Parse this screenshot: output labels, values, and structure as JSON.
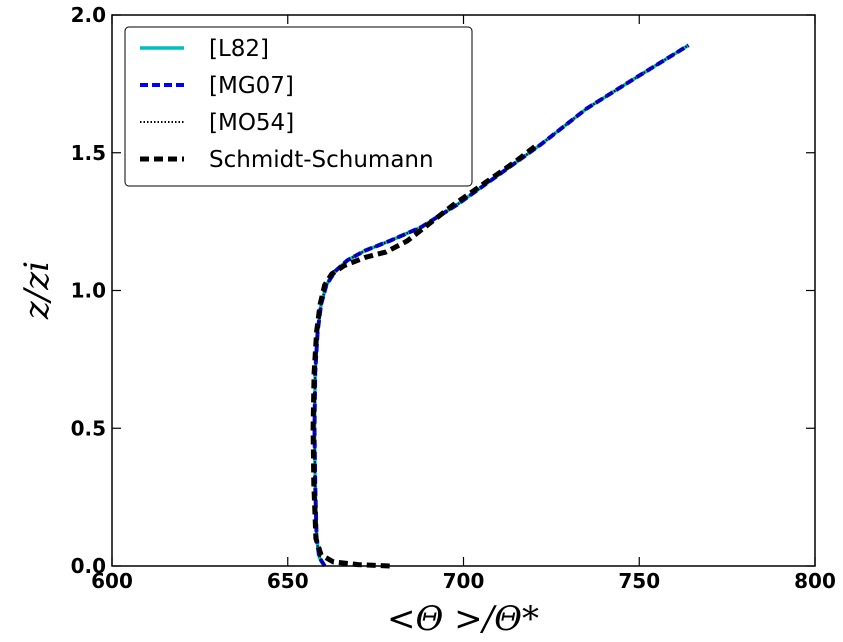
{
  "chart_data": {
    "type": "line",
    "xlabel": "<Θ >/Θ*",
    "ylabel": "z/zi",
    "xlim": [
      600,
      800
    ],
    "ylim": [
      0,
      2.0
    ],
    "x_ticks": [
      "600",
      "650",
      "700",
      "750",
      "800"
    ],
    "y_ticks": [
      "0.0",
      "0.5",
      "1.0",
      "1.5",
      "2.0"
    ],
    "grid": false,
    "legend_position": "upper-left",
    "series": [
      {
        "name": "[L82]",
        "style": "solid",
        "color": "#00BFBF",
        "points": [
          [
            660.5,
            0.0
          ],
          [
            659.0,
            0.03
          ],
          [
            658.2,
            0.1
          ],
          [
            657.8,
            0.3
          ],
          [
            657.6,
            0.5
          ],
          [
            657.8,
            0.7
          ],
          [
            658.5,
            0.85
          ],
          [
            659.5,
            0.95
          ],
          [
            661.0,
            1.02
          ],
          [
            663.5,
            1.07
          ],
          [
            667.0,
            1.11
          ],
          [
            672.0,
            1.145
          ],
          [
            679.0,
            1.18
          ],
          [
            688.0,
            1.23
          ],
          [
            698.0,
            1.31
          ],
          [
            710.0,
            1.42
          ],
          [
            722.0,
            1.53
          ],
          [
            735.0,
            1.66
          ],
          [
            750.0,
            1.78
          ],
          [
            764.0,
            1.89
          ]
        ]
      },
      {
        "name": "[MG07]",
        "style": "dashed",
        "color": "#0000FF",
        "points": [
          [
            660.5,
            0.0
          ],
          [
            659.0,
            0.03
          ],
          [
            658.2,
            0.1
          ],
          [
            657.8,
            0.3
          ],
          [
            657.6,
            0.5
          ],
          [
            657.8,
            0.7
          ],
          [
            658.5,
            0.85
          ],
          [
            659.5,
            0.95
          ],
          [
            661.0,
            1.02
          ],
          [
            663.5,
            1.07
          ],
          [
            667.0,
            1.11
          ],
          [
            672.0,
            1.145
          ],
          [
            679.0,
            1.18
          ],
          [
            688.0,
            1.23
          ],
          [
            698.0,
            1.31
          ],
          [
            710.0,
            1.42
          ],
          [
            722.0,
            1.53
          ],
          [
            735.0,
            1.66
          ],
          [
            750.0,
            1.78
          ],
          [
            764.0,
            1.89
          ]
        ]
      },
      {
        "name": "[MO54]",
        "style": "dotted",
        "color": "#000000",
        "points": [
          [
            660.5,
            0.0
          ],
          [
            659.0,
            0.03
          ],
          [
            658.2,
            0.1
          ],
          [
            657.8,
            0.3
          ],
          [
            657.6,
            0.5
          ],
          [
            657.8,
            0.7
          ],
          [
            658.5,
            0.85
          ],
          [
            659.5,
            0.95
          ],
          [
            661.0,
            1.02
          ],
          [
            663.5,
            1.07
          ],
          [
            667.0,
            1.11
          ],
          [
            672.0,
            1.145
          ],
          [
            679.0,
            1.18
          ],
          [
            688.0,
            1.23
          ],
          [
            698.0,
            1.31
          ],
          [
            710.0,
            1.42
          ],
          [
            722.0,
            1.53
          ],
          [
            735.0,
            1.66
          ],
          [
            750.0,
            1.78
          ],
          [
            764.0,
            1.89
          ]
        ]
      },
      {
        "name": "Schmidt-Schumann",
        "style": "dashed",
        "color": "#000000",
        "points": [
          [
            679.0,
            0.0
          ],
          [
            670.0,
            0.005
          ],
          [
            663.0,
            0.015
          ],
          [
            659.5,
            0.04
          ],
          [
            658.0,
            0.1
          ],
          [
            657.4,
            0.3
          ],
          [
            657.2,
            0.5
          ],
          [
            657.5,
            0.7
          ],
          [
            658.2,
            0.85
          ],
          [
            659.2,
            0.95
          ],
          [
            660.5,
            1.02
          ],
          [
            662.5,
            1.06
          ],
          [
            666.0,
            1.09
          ],
          [
            672.0,
            1.12
          ],
          [
            678.0,
            1.14
          ],
          [
            684.0,
            1.18
          ],
          [
            690.0,
            1.24
          ],
          [
            697.0,
            1.31
          ],
          [
            706.0,
            1.39
          ],
          [
            715.0,
            1.47
          ],
          [
            721.0,
            1.53
          ]
        ]
      }
    ]
  }
}
